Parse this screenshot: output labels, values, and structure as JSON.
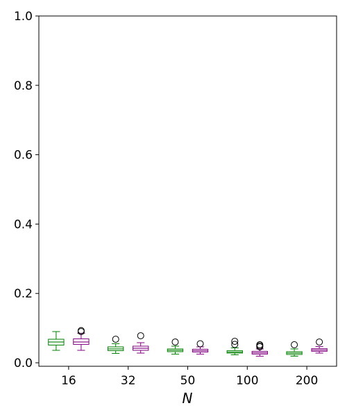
{
  "chart_data": {
    "type": "box",
    "title": "",
    "xlabel": "N",
    "ylabel": "",
    "categories": [
      "16",
      "32",
      "50",
      "100",
      "200"
    ],
    "ylim": [
      -0.01,
      1.0
    ],
    "yticks": [
      "0.0",
      "0.2",
      "0.4",
      "0.6",
      "0.8",
      "1.0"
    ],
    "grid": false,
    "series": [
      {
        "color": "#008000",
        "boxes": [
          {
            "whislo": 0.036,
            "q1": 0.051,
            "med": 0.06,
            "q3": 0.068,
            "whishi": 0.09,
            "fliers": []
          },
          {
            "whislo": 0.027,
            "q1": 0.035,
            "med": 0.04,
            "q3": 0.046,
            "whishi": 0.055,
            "fliers": [
              0.068
            ]
          },
          {
            "whislo": 0.025,
            "q1": 0.032,
            "med": 0.036,
            "q3": 0.04,
            "whishi": 0.048,
            "fliers": [
              0.06
            ]
          },
          {
            "whislo": 0.023,
            "q1": 0.028,
            "med": 0.031,
            "q3": 0.035,
            "whishi": 0.043,
            "fliers": [
              0.053,
              0.062
            ]
          },
          {
            "whislo": 0.019,
            "q1": 0.024,
            "med": 0.028,
            "q3": 0.032,
            "whishi": 0.04,
            "fliers": [
              0.052
            ]
          }
        ]
      },
      {
        "color": "#800080",
        "boxes": [
          {
            "whislo": 0.036,
            "q1": 0.053,
            "med": 0.06,
            "q3": 0.069,
            "whishi": 0.085,
            "fliers": [
              0.09,
              0.093
            ]
          },
          {
            "whislo": 0.028,
            "q1": 0.036,
            "med": 0.042,
            "q3": 0.048,
            "whishi": 0.058,
            "fliers": [
              0.078
            ]
          },
          {
            "whislo": 0.025,
            "q1": 0.031,
            "med": 0.035,
            "q3": 0.039,
            "whishi": 0.046,
            "fliers": [
              0.055
            ]
          },
          {
            "whislo": 0.019,
            "q1": 0.025,
            "med": 0.029,
            "q3": 0.033,
            "whishi": 0.04,
            "fliers": [
              0.046,
              0.049,
              0.052
            ]
          },
          {
            "whislo": 0.028,
            "q1": 0.033,
            "med": 0.037,
            "q3": 0.041,
            "whishi": 0.047,
            "fliers": [
              0.06
            ]
          }
        ]
      }
    ]
  }
}
